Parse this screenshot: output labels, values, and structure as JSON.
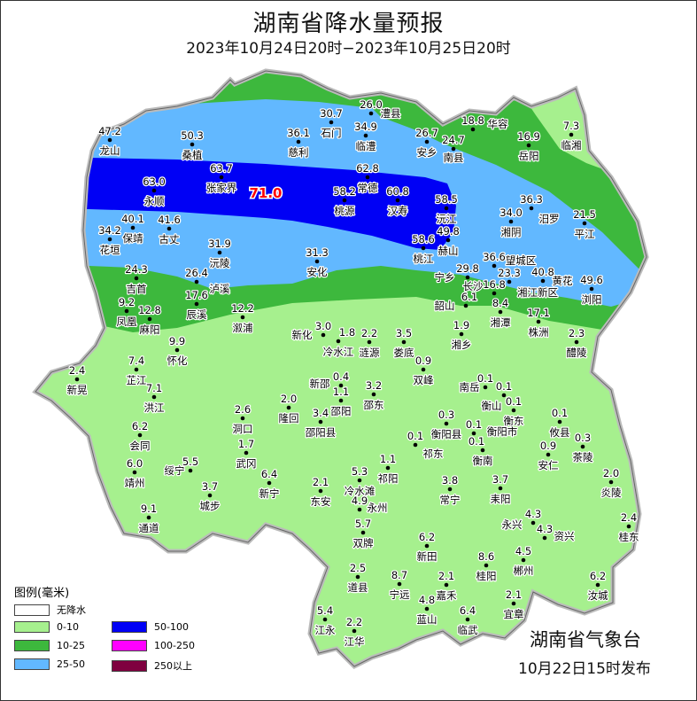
{
  "title": "湖南省降水量预报",
  "subtitle": "2023年10月24日20时−2023年10月25日20时",
  "max_label": "71.0",
  "legend": {
    "title": "图例(毫米)",
    "items": [
      {
        "label": "无降水",
        "color": "#ffffff"
      },
      {
        "label": "0-10",
        "color": "#a6f08e"
      },
      {
        "label": "10-25",
        "color": "#3db83d"
      },
      {
        "label": "25-50",
        "color": "#62b8ff"
      },
      {
        "label": "50-100",
        "color": "#0000f5"
      },
      {
        "label": "100-250",
        "color": "#ff00ff"
      },
      {
        "label": "250以上",
        "color": "#7f003f"
      }
    ]
  },
  "footer": {
    "org": "湖南省气象台",
    "issued": "10月22日15时发布"
  },
  "stations": [
    {
      "name": "龙山",
      "value": "47.2"
    },
    {
      "name": "桑植",
      "value": "50.3"
    },
    {
      "name": "张家界",
      "value": "63.7"
    },
    {
      "name": "永顺",
      "value": "63.0"
    },
    {
      "name": "慈利",
      "value": "36.1"
    },
    {
      "name": "石门",
      "value": "30.7"
    },
    {
      "name": "澧县",
      "value": "26.0"
    },
    {
      "name": "临澧",
      "value": "34.9"
    },
    {
      "name": "安乡",
      "value": "26.7"
    },
    {
      "name": "华容",
      "value": "18.8"
    },
    {
      "name": "南县",
      "value": "24.7"
    },
    {
      "name": "岳阳",
      "value": "16.9"
    },
    {
      "name": "临湘",
      "value": "7.3"
    },
    {
      "name": "常德",
      "value": "62.8"
    },
    {
      "name": "桃源",
      "value": "58.2"
    },
    {
      "name": "汉寿",
      "value": "60.8"
    },
    {
      "name": "沅江",
      "value": "58.5"
    },
    {
      "name": "桃江",
      "value": "58.6"
    },
    {
      "name": "赫山",
      "value": "49.8"
    },
    {
      "name": "汨罗",
      "value": "36.3"
    },
    {
      "name": "湘阴",
      "value": "34.0"
    },
    {
      "name": "平江",
      "value": "21.5"
    },
    {
      "name": "保靖",
      "value": "40.1"
    },
    {
      "name": "古丈",
      "value": "41.6"
    },
    {
      "name": "花垣",
      "value": "34.2"
    },
    {
      "name": "沅陵",
      "value": "31.9"
    },
    {
      "name": "安化",
      "value": "31.3"
    },
    {
      "name": "宁乡",
      "value": "29.8"
    },
    {
      "name": "望城区",
      "value": "36.6"
    },
    {
      "name": "湘江新区",
      "value": "23.3"
    },
    {
      "name": "长沙",
      "value": "16.8"
    },
    {
      "name": "黄花",
      "value": "40.8"
    },
    {
      "name": "浏阳",
      "value": "49.6"
    },
    {
      "name": "吉首",
      "value": "24.3"
    },
    {
      "name": "泸溪",
      "value": "26.4"
    },
    {
      "name": "辰溪",
      "value": "17.6"
    },
    {
      "name": "凤凰",
      "value": "9.2"
    },
    {
      "name": "麻阳",
      "value": "12.8"
    },
    {
      "name": "溆浦",
      "value": "12.2"
    },
    {
      "name": "韶山",
      "value": "6.1"
    },
    {
      "name": "湘潭",
      "value": "8.4"
    },
    {
      "name": "株洲",
      "value": "17.1"
    },
    {
      "name": "醴陵",
      "value": "2.3"
    },
    {
      "name": "湘乡",
      "value": "1.9"
    },
    {
      "name": "新化",
      "value": "3.0"
    },
    {
      "name": "冷水江",
      "value": "1.8"
    },
    {
      "name": "涟源",
      "value": "2.2"
    },
    {
      "name": "娄底",
      "value": "3.5"
    },
    {
      "name": "双峰",
      "value": "0.9"
    },
    {
      "name": "怀化",
      "value": "9.9"
    },
    {
      "name": "芷江",
      "value": "7.4"
    },
    {
      "name": "新晃",
      "value": "2.4"
    },
    {
      "name": "洪江",
      "value": "7.1"
    },
    {
      "name": "新邵",
      "value": "0.4"
    },
    {
      "name": "邵阳",
      "value": "1.1"
    },
    {
      "name": "邵东",
      "value": "3.2"
    },
    {
      "name": "隆回",
      "value": "2.0"
    },
    {
      "name": "邵阳县",
      "value": "3.4"
    },
    {
      "name": "南岳",
      "value": "0.1"
    },
    {
      "name": "衡山",
      "value": "0.1"
    },
    {
      "name": "衡东",
      "value": "0.1"
    },
    {
      "name": "攸县",
      "value": "0.1"
    },
    {
      "name": "衡阳县",
      "value": "0.3"
    },
    {
      "name": "衡阳市",
      "value": "0.1"
    },
    {
      "name": "衡南",
      "value": "0.1"
    },
    {
      "name": "祁东",
      "value": "0.1"
    },
    {
      "name": "安仁",
      "value": "0.9"
    },
    {
      "name": "茶陵",
      "value": "0.3"
    },
    {
      "name": "洞口",
      "value": "2.6"
    },
    {
      "name": "武冈",
      "value": "1.7"
    },
    {
      "name": "会同",
      "value": "6.2"
    },
    {
      "name": "靖州",
      "value": "6.0"
    },
    {
      "name": "绥宁",
      "value": "5.5"
    },
    {
      "name": "城步",
      "value": "3.7"
    },
    {
      "name": "通道",
      "value": "9.1"
    },
    {
      "name": "新宁",
      "value": "6.4"
    },
    {
      "name": "东安",
      "value": "2.1"
    },
    {
      "name": "祁阳",
      "value": "1.1"
    },
    {
      "name": "冷水滩",
      "value": "5.3"
    },
    {
      "name": "永州",
      "value": "4.9"
    },
    {
      "name": "常宁",
      "value": "3.8"
    },
    {
      "name": "耒阳",
      "value": "3.7"
    },
    {
      "name": "炎陵",
      "value": "2.0"
    },
    {
      "name": "永兴",
      "value": "4.3"
    },
    {
      "name": "资兴",
      "value": "4.3"
    },
    {
      "name": "桂东",
      "value": "2.4"
    },
    {
      "name": "双牌",
      "value": "5.7"
    },
    {
      "name": "新田",
      "value": "6.2"
    },
    {
      "name": "桂阳",
      "value": "8.6"
    },
    {
      "name": "郴州",
      "value": "4.5"
    },
    {
      "name": "道县",
      "value": "2.5"
    },
    {
      "name": "宁远",
      "value": "8.7"
    },
    {
      "name": "嘉禾",
      "value": "2.1"
    },
    {
      "name": "汝城",
      "value": "6.2"
    },
    {
      "name": "宜章",
      "value": "2.1"
    },
    {
      "name": "蓝山",
      "value": "4.8"
    },
    {
      "name": "临武",
      "value": "6.4"
    },
    {
      "name": "江永",
      "value": "5.4"
    },
    {
      "name": "江华",
      "value": "2.2"
    }
  ]
}
